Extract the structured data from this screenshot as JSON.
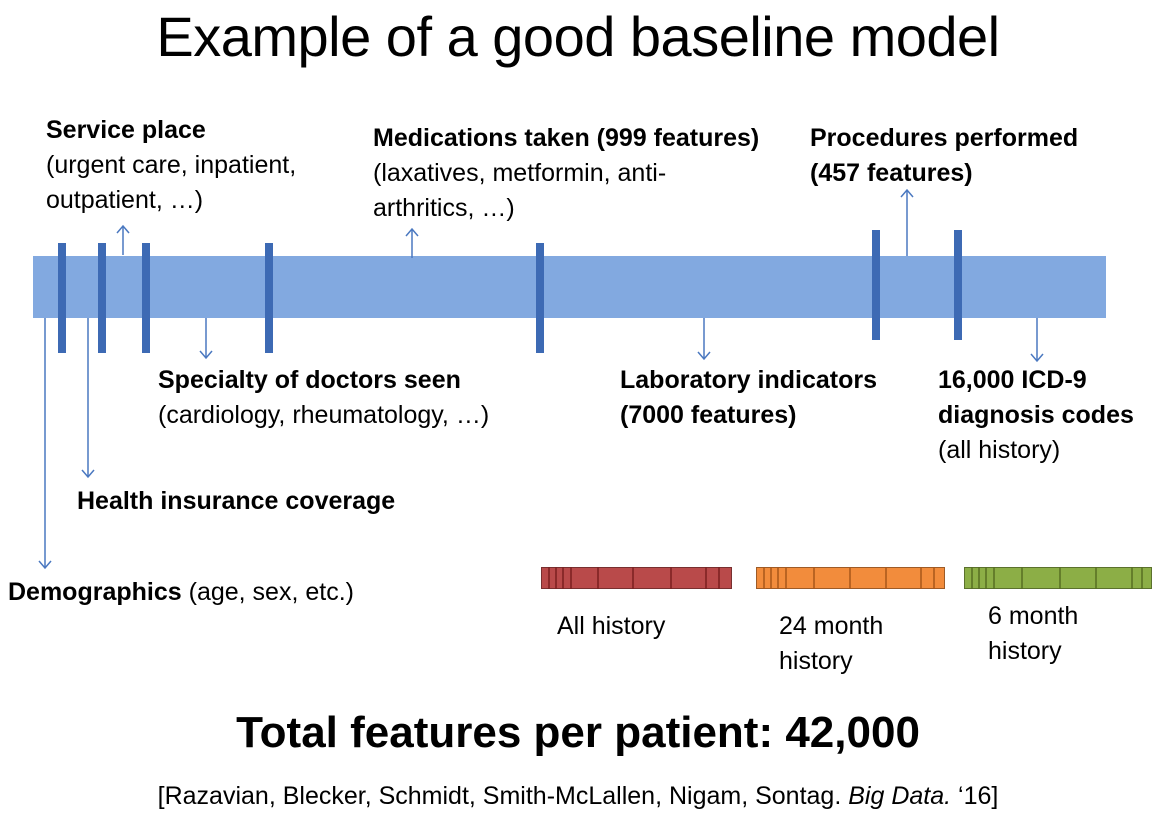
{
  "title": "Example of a good baseline model",
  "labels": {
    "service_place": {
      "heading": "Service place",
      "line1": "(urgent care, inpatient,",
      "line2": "outpatient, …)"
    },
    "medications": {
      "heading": "Medications taken (999 features)",
      "line1": "(laxatives, metformin, anti-",
      "line2": "arthritics, …)"
    },
    "procedures": {
      "line1": "Procedures performed",
      "line2": "(457 features)"
    },
    "specialty": {
      "heading": "Specialty of doctors seen",
      "line1": "(cardiology, rheumatology, …)"
    },
    "laboratory": {
      "line1": "Laboratory indicators",
      "line2": "(7000 features)"
    },
    "icd9": {
      "line1": "16,000 ICD-9",
      "line2": "diagnosis codes",
      "line3": "(all history)"
    },
    "insurance": {
      "heading": "Health insurance coverage"
    },
    "demographics": {
      "heading": "Demographics",
      "detail": " (age, sex, etc.)"
    }
  },
  "history_windows": [
    {
      "label_line1": "All history",
      "label_line2": "",
      "color": "#b94a4a"
    },
    {
      "label_line1": "24 month",
      "label_line2": "history",
      "color": "#f28c3c"
    },
    {
      "label_line1": "6 month",
      "label_line2": "history",
      "color": "#8cae46"
    }
  ],
  "colors": {
    "timeline": "#82a9e0",
    "tick": "#3d6ab4",
    "arrow": "#4a78c0"
  },
  "total": "Total features per patient: 42,000",
  "citation": {
    "authors": "[Razavian, Blecker, Schmidt, Smith-McLallen, Nigam, Sontag. ",
    "journal": "Big Data.",
    "year": " ‘16]"
  }
}
